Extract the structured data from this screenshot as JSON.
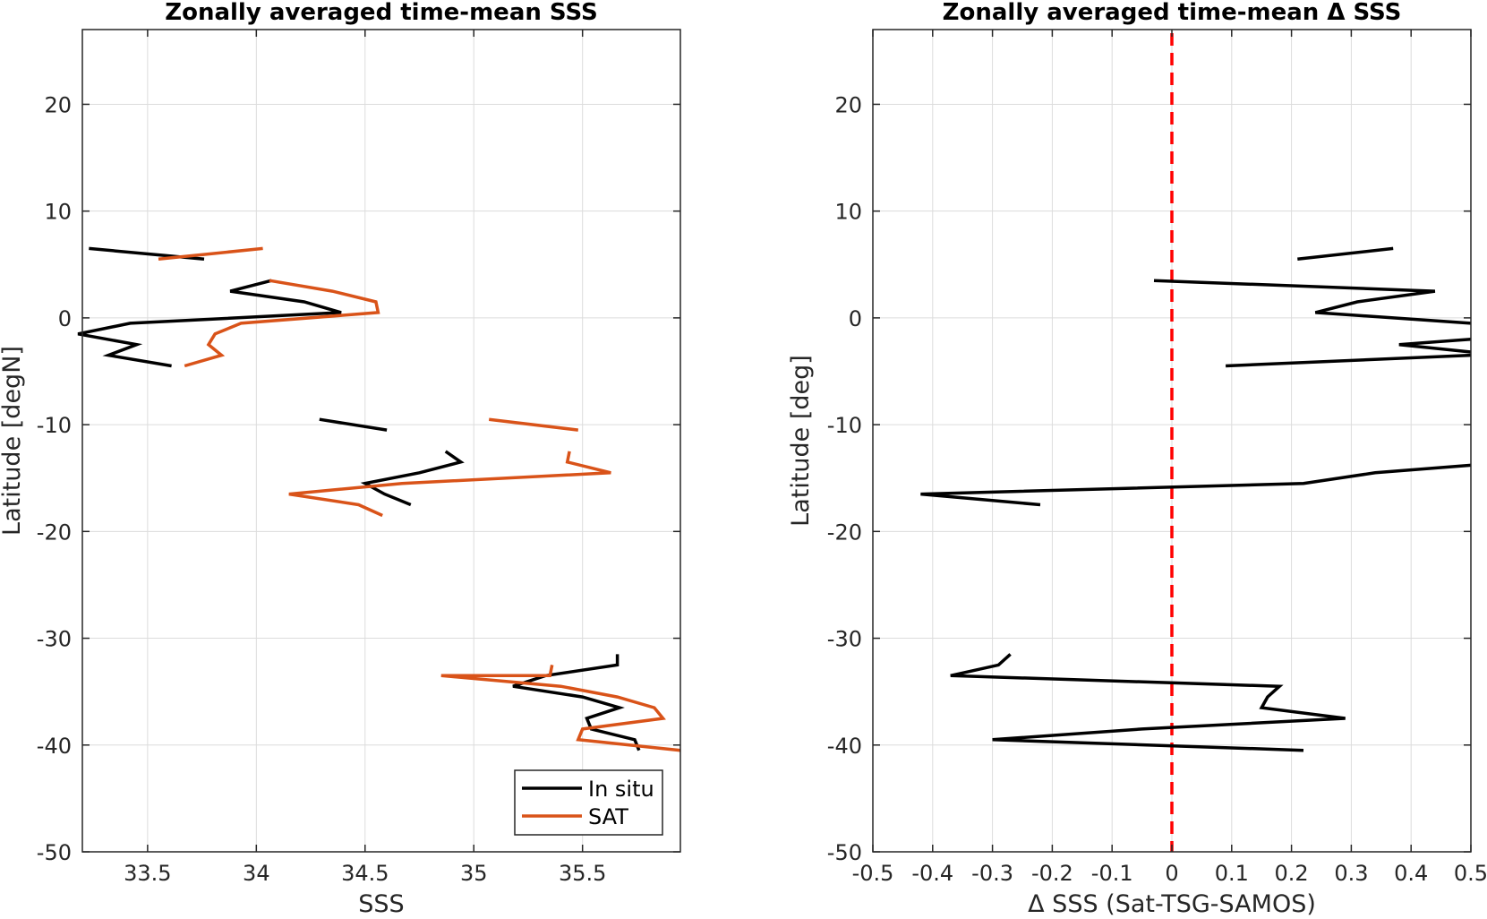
{
  "chart_data": [
    {
      "type": "line",
      "title": "Zonally averaged time-mean SSS",
      "xlabel": "SSS",
      "ylabel": "Latitude [degN]",
      "xlim": [
        33.2,
        35.95
      ],
      "ylim": [
        -50,
        27
      ],
      "xticks": [
        33.5,
        34,
        34.5,
        35,
        35.5
      ],
      "xtick_labels": [
        "33.5",
        "34",
        "34.5",
        "35",
        "35.5"
      ],
      "yticks": [
        -50,
        -40,
        -30,
        -20,
        -10,
        0,
        10,
        20
      ],
      "ytick_labels": [
        "-50",
        "-40",
        "-30",
        "-20",
        "-10",
        "0",
        "10",
        "20"
      ],
      "grid": true,
      "legend_position": "bottom-right",
      "series": [
        {
          "name": "In situ",
          "color": "#000000",
          "segments": [
            [
              [
                33.23,
                6.5
              ],
              [
                33.76,
                5.5
              ]
            ],
            [
              [
                34.07,
                3.5
              ],
              [
                33.88,
                2.5
              ],
              [
                34.22,
                1.5
              ],
              [
                34.39,
                0.5
              ],
              [
                33.42,
                -0.5
              ],
              [
                33.18,
                -1.5
              ],
              [
                33.45,
                -2.5
              ],
              [
                33.32,
                -3.5
              ],
              [
                33.61,
                -4.5
              ]
            ],
            [
              [
                34.29,
                -9.5
              ],
              [
                34.6,
                -10.5
              ]
            ],
            [
              [
                34.87,
                -12.5
              ],
              [
                34.94,
                -13.5
              ],
              [
                34.75,
                -14.5
              ],
              [
                34.5,
                -15.5
              ],
              [
                34.59,
                -16.5
              ],
              [
                34.71,
                -17.5
              ]
            ],
            [
              [
                35.66,
                -31.5
              ],
              [
                35.66,
                -32.5
              ],
              [
                35.33,
                -33.5
              ],
              [
                35.18,
                -34.5
              ],
              [
                35.5,
                -35.5
              ],
              [
                35.67,
                -36.5
              ],
              [
                35.52,
                -37.5
              ],
              [
                35.54,
                -38.5
              ],
              [
                35.74,
                -39.5
              ],
              [
                35.76,
                -40.5
              ]
            ]
          ]
        },
        {
          "name": "SAT",
          "color": "#D95319",
          "segments": [
            [
              [
                33.55,
                5.5
              ],
              [
                34.03,
                6.5
              ]
            ],
            [
              [
                34.06,
                3.5
              ],
              [
                34.35,
                2.5
              ],
              [
                34.55,
                1.5
              ],
              [
                34.56,
                0.5
              ],
              [
                33.93,
                -0.5
              ],
              [
                33.81,
                -1.5
              ],
              [
                33.78,
                -2.5
              ],
              [
                33.84,
                -3.5
              ],
              [
                33.67,
                -4.5
              ]
            ],
            [
              [
                35.07,
                -9.5
              ],
              [
                35.48,
                -10.5
              ]
            ],
            [
              [
                35.44,
                -12.5
              ],
              [
                35.43,
                -13.5
              ],
              [
                35.63,
                -14.5
              ],
              [
                34.67,
                -15.5
              ],
              [
                34.15,
                -16.5
              ],
              [
                34.47,
                -17.5
              ],
              [
                34.58,
                -18.5
              ]
            ],
            [
              [
                35.36,
                -32.5
              ],
              [
                35.35,
                -33.5
              ],
              [
                34.85,
                -33.5
              ],
              [
                35.4,
                -34.5
              ],
              [
                35.66,
                -35.5
              ],
              [
                35.83,
                -36.5
              ],
              [
                35.87,
                -37.5
              ],
              [
                35.5,
                -38.5
              ],
              [
                35.48,
                -39.5
              ],
              [
                35.95,
                -40.5
              ]
            ]
          ]
        }
      ]
    },
    {
      "type": "line",
      "title": "Zonally averaged time-mean Δ SSS",
      "xlabel": "Δ SSS (Sat-TSG-SAMOS)",
      "ylabel": "Latitude [deg]",
      "xlim": [
        -0.5,
        0.5
      ],
      "ylim": [
        -50,
        27
      ],
      "xticks": [
        -0.5,
        -0.4,
        -0.3,
        -0.2,
        -0.1,
        0,
        0.1,
        0.2,
        0.3,
        0.4,
        0.5
      ],
      "xtick_labels": [
        "-0.5",
        "-0.4",
        "-0.3",
        "-0.2",
        "-0.1",
        "0",
        "0.1",
        "0.2",
        "0.3",
        "0.4",
        "0.5"
      ],
      "yticks": [
        -50,
        -40,
        -30,
        -20,
        -10,
        0,
        10,
        20
      ],
      "ytick_labels": [
        "-50",
        "-40",
        "-30",
        "-20",
        "-10",
        "0",
        "10",
        "20"
      ],
      "grid": true,
      "reference_line": {
        "x": 0,
        "color": "#FF0000",
        "style": "dashed"
      },
      "series": [
        {
          "color": "#000000",
          "segments": [
            [
              [
                0.21,
                5.5
              ],
              [
                0.37,
                6.5
              ]
            ],
            [
              [
                -0.03,
                3.5
              ],
              [
                0.44,
                2.5
              ],
              [
                0.31,
                1.5
              ],
              [
                0.24,
                0.5
              ],
              [
                0.5,
                -0.5
              ]
            ],
            [
              [
                0.5,
                -2.0
              ],
              [
                0.38,
                -2.5
              ],
              [
                0.5,
                -3.2
              ]
            ],
            [
              [
                0.5,
                -3.5
              ],
              [
                0.09,
                -4.5
              ]
            ],
            [
              [
                0.5,
                -13.8
              ],
              [
                0.34,
                -14.5
              ],
              [
                0.22,
                -15.5
              ],
              [
                -0.42,
                -16.5
              ],
              [
                -0.22,
                -17.5
              ]
            ],
            [
              [
                -0.27,
                -31.5
              ],
              [
                -0.29,
                -32.5
              ],
              [
                -0.37,
                -33.5
              ],
              [
                0.18,
                -34.5
              ],
              [
                0.16,
                -35.5
              ],
              [
                0.15,
                -36.5
              ],
              [
                0.29,
                -37.5
              ],
              [
                -0.05,
                -38.5
              ],
              [
                -0.3,
                -39.5
              ],
              [
                0.22,
                -40.5
              ]
            ]
          ]
        }
      ]
    }
  ],
  "legend": {
    "items": [
      {
        "label": "In situ",
        "color": "#000000"
      },
      {
        "label": "SAT",
        "color": "#D95319"
      }
    ]
  }
}
